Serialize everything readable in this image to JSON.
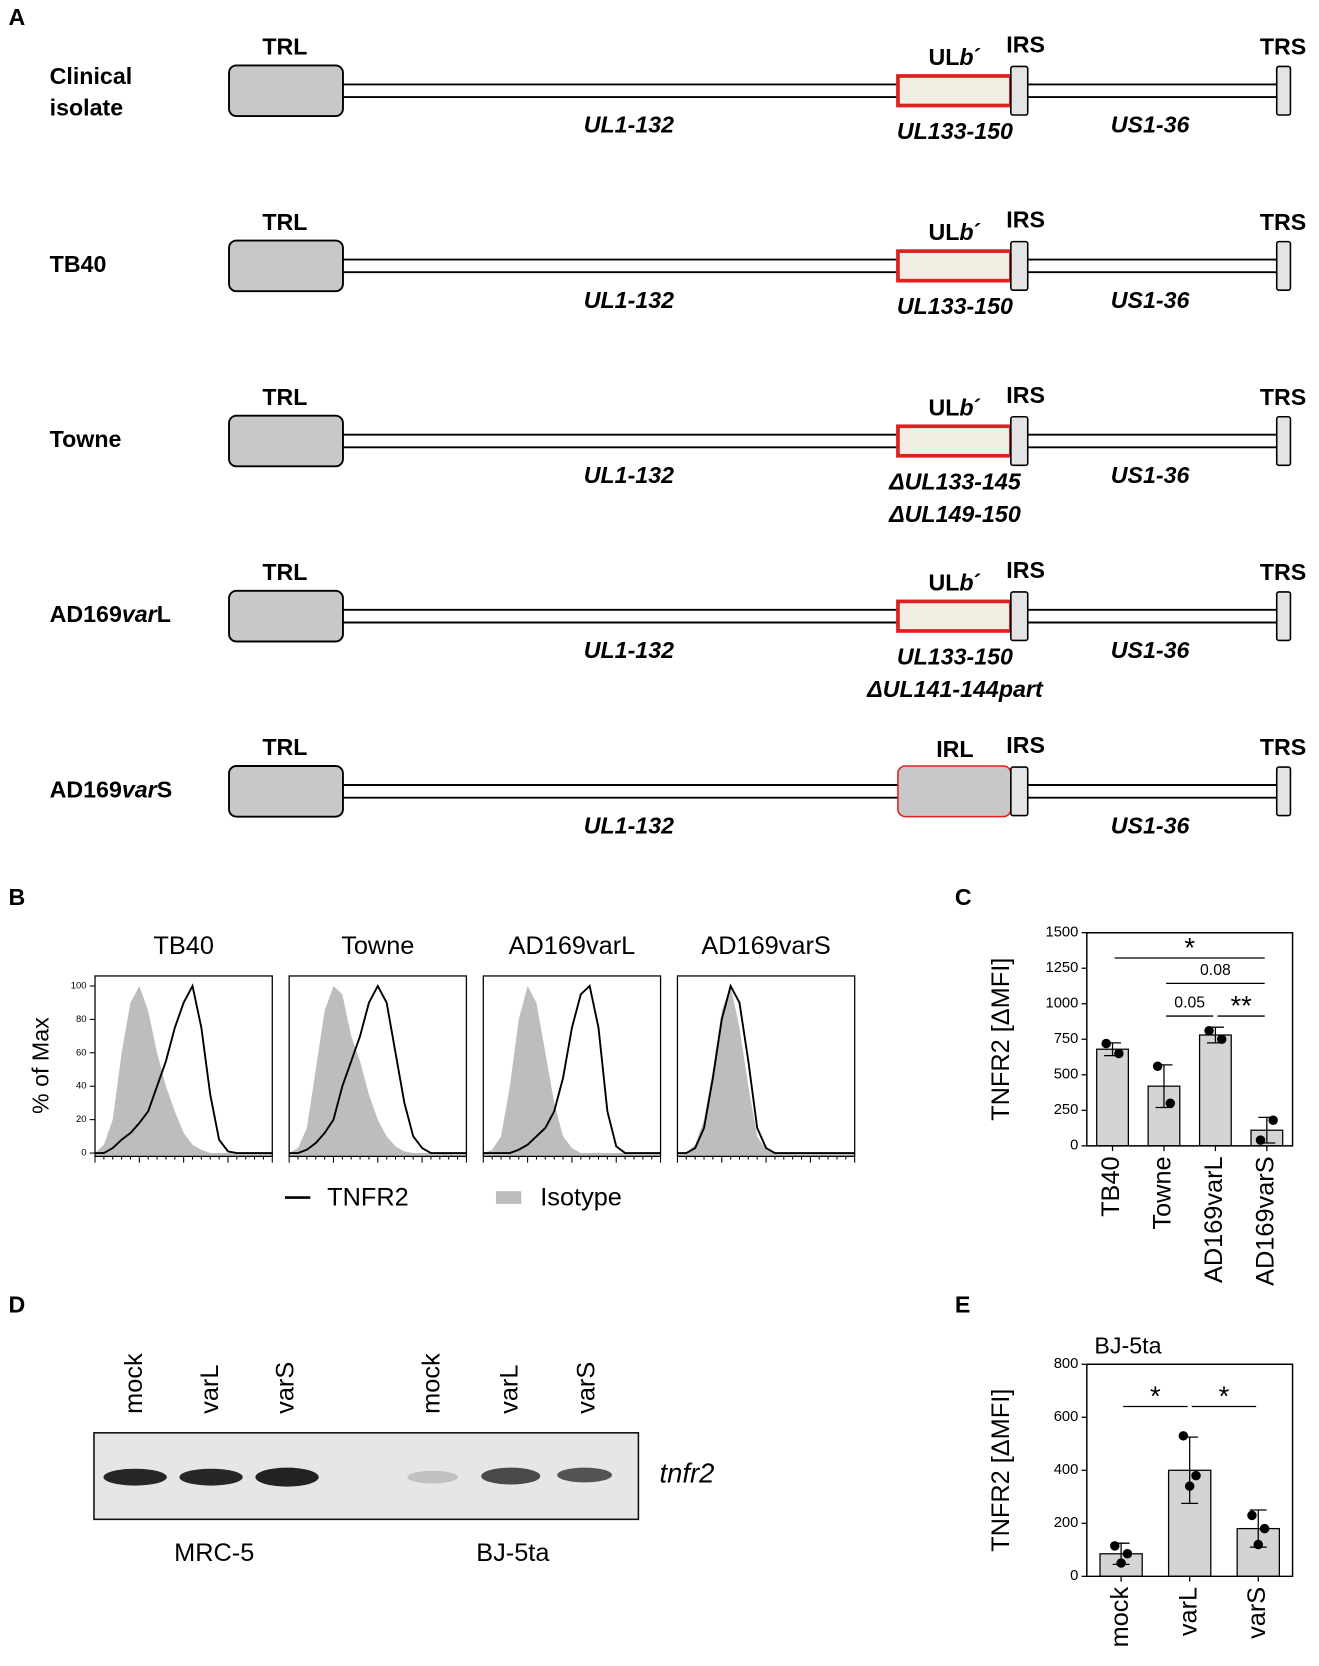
{
  "panel_labels": [
    "A",
    "B",
    "C",
    "D",
    "E"
  ],
  "genome_map": {
    "rows": [
      {
        "name": [
          [
            "Clinical"
          ],
          [
            "isolate"
          ]
        ],
        "left": "TRL",
        "middle": [
          "UL",
          "b",
          "´"
        ],
        "middle_fill": "#f1efe4",
        "middle_border": "#e02020",
        "notes": [
          "UL133-150"
        ],
        "irs": "IRS",
        "trs": "TRS",
        "ul": "UL1-132",
        "us": "US1-36"
      },
      {
        "name": [
          [
            "TB40"
          ]
        ],
        "left": "TRL",
        "middle": [
          "UL",
          "b",
          "´"
        ],
        "middle_fill": "#f1efe4",
        "middle_border": "#e02020",
        "notes": [
          "UL133-150"
        ],
        "irs": "IRS",
        "trs": "TRS",
        "ul": "UL1-132",
        "us": "US1-36"
      },
      {
        "name": [
          [
            "Towne"
          ]
        ],
        "left": "TRL",
        "middle": [
          "UL",
          "b",
          "´"
        ],
        "middle_fill": "#f1efe4",
        "middle_border": "#e02020",
        "notes": [
          "ΔUL133-145",
          "ΔUL149-150"
        ],
        "irs": "IRS",
        "trs": "TRS",
        "ul": "UL1-132",
        "us": "US1-36"
      },
      {
        "name": [
          [
            "AD169",
            "var",
            "L"
          ]
        ],
        "left": "TRL",
        "middle": [
          "UL",
          "b",
          "´"
        ],
        "middle_fill": "#f1efe4",
        "middle_border": "#e02020",
        "notes": [
          "UL133-150",
          "ΔUL141-144part"
        ],
        "irs": "IRS",
        "trs": "TRS",
        "ul": "UL1-132",
        "us": "US1-36"
      },
      {
        "name": [
          [
            "AD169",
            "var",
            "S"
          ]
        ],
        "left": "TRL",
        "middle": [
          "IRL"
        ],
        "middle_fill": "#c8c8c8",
        "middle_border": "#e02020",
        "notes": [],
        "irs": "IRS",
        "trs": "TRS",
        "ul": "UL1-132",
        "us": "US1-36"
      }
    ]
  },
  "chart_data": [
    {
      "type": "line",
      "ylabel": "% of Max",
      "ylim": [
        -2,
        106
      ],
      "yticks": [
        0,
        20,
        40,
        60,
        80,
        100
      ],
      "xlim": [
        0,
        100
      ],
      "x": [
        0,
        5,
        10,
        15,
        20,
        25,
        30,
        35,
        40,
        45,
        50,
        55,
        60,
        65,
        70,
        75,
        80,
        85,
        90,
        95,
        100
      ],
      "legend": [
        {
          "name": "TNFR2",
          "color": "#000000"
        },
        {
          "name": "Isotype",
          "color": "#bdbdbd"
        }
      ],
      "panels": [
        {
          "title": "TB40",
          "tnfr2": [
            0,
            0,
            3,
            8,
            12,
            18,
            25,
            40,
            55,
            75,
            90,
            100,
            75,
            35,
            8,
            1,
            0,
            0,
            0,
            0,
            0
          ],
          "isotype": [
            0,
            5,
            20,
            60,
            90,
            100,
            85,
            60,
            40,
            25,
            12,
            5,
            2,
            0,
            0,
            0,
            0,
            0,
            0,
            0,
            0
          ]
        },
        {
          "title": "Towne",
          "tnfr2": [
            0,
            0,
            2,
            6,
            12,
            20,
            40,
            55,
            70,
            90,
            100,
            90,
            60,
            30,
            10,
            3,
            0,
            0,
            0,
            0,
            0
          ],
          "isotype": [
            0,
            3,
            15,
            50,
            85,
            100,
            95,
            70,
            55,
            35,
            20,
            10,
            4,
            1,
            0,
            0,
            0,
            0,
            0,
            0,
            0
          ]
        },
        {
          "title": "AD169varL",
          "tnfr2": [
            0,
            0,
            0,
            0,
            2,
            5,
            10,
            15,
            25,
            45,
            75,
            95,
            100,
            75,
            25,
            4,
            0,
            0,
            0,
            0,
            0
          ],
          "isotype": [
            0,
            2,
            10,
            40,
            80,
            100,
            90,
            60,
            30,
            10,
            3,
            0,
            0,
            0,
            0,
            0,
            0,
            0,
            0,
            0,
            0
          ]
        },
        {
          "title": "AD169varS",
          "tnfr2": [
            0,
            0,
            3,
            15,
            45,
            80,
            100,
            90,
            55,
            15,
            3,
            0,
            0,
            0,
            0,
            0,
            0,
            0,
            0,
            0,
            0
          ],
          "isotype": [
            0,
            0,
            5,
            20,
            50,
            85,
            100,
            75,
            40,
            10,
            2,
            0,
            0,
            0,
            0,
            0,
            0,
            0,
            0,
            0,
            0
          ]
        }
      ]
    },
    {
      "type": "bar",
      "ylabel": "TNFR2 [ΔMFI]",
      "ylim": [
        0,
        1500
      ],
      "yticks": [
        0,
        250,
        500,
        750,
        1000,
        1250,
        1500
      ],
      "color": "#d4d4d4",
      "categories": [
        "TB40",
        "Towne",
        "AD169varL",
        "AD169varS"
      ],
      "values": [
        680,
        420,
        780,
        110
      ],
      "errors": [
        45,
        150,
        55,
        90
      ],
      "points": [
        [
          720,
          650
        ],
        [
          560,
          300
        ],
        [
          810,
          750
        ],
        [
          40,
          180
        ]
      ],
      "significance": [
        {
          "label": "*",
          "between": [
            "TB40",
            "AD169varS"
          ]
        },
        {
          "label": "0.08",
          "between": [
            "Towne",
            "AD169varS"
          ]
        },
        {
          "label": "0.05",
          "between": [
            "Towne",
            "AD169varL"
          ]
        },
        {
          "label": "**",
          "between": [
            "AD169varL",
            "AD169varS"
          ]
        }
      ]
    },
    {
      "type": "bar",
      "title": "BJ-5ta",
      "ylabel": "TNFR2 [ΔMFI]",
      "ylim": [
        0,
        800
      ],
      "yticks": [
        0,
        200,
        400,
        600,
        800
      ],
      "color": "#d4d4d4",
      "categories": [
        "mock",
        "varL",
        "varS"
      ],
      "values": [
        85,
        400,
        180
      ],
      "errors": [
        40,
        125,
        70
      ],
      "points": [
        [
          115,
          85,
          50
        ],
        [
          530,
          380,
          340
        ],
        [
          230,
          180,
          120
        ]
      ],
      "significance": [
        {
          "label": "*",
          "between": [
            "mock",
            "varL"
          ]
        },
        {
          "label": "*",
          "between": [
            "varL",
            "varS"
          ]
        }
      ]
    }
  ],
  "gel": {
    "lanes": [
      "mock",
      "varL",
      "varS",
      "mock",
      "varL",
      "varS"
    ],
    "band": "tnfr2",
    "groups": [
      "MRC-5",
      "BJ-5ta"
    ]
  }
}
